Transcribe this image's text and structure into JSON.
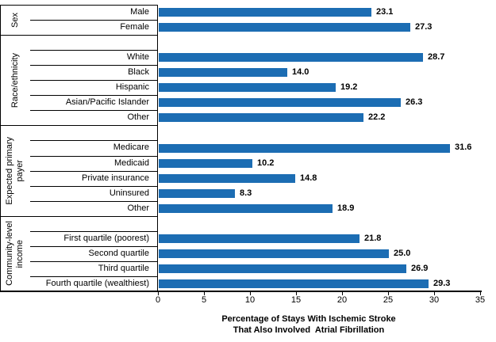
{
  "chart_data": {
    "type": "bar",
    "orientation": "horizontal",
    "title": "",
    "xlabel": "Percentage of Stays With Ischemic Stroke That Also Involved Atrial Fibrillation",
    "xlabel_lines": [
      "Percentage of Stays With Ischemic Stroke",
      "That Also Involved  Atrial Fibrillation"
    ],
    "xlim": [
      0,
      35
    ],
    "xticks": [
      0,
      5,
      10,
      15,
      20,
      25,
      30,
      35
    ],
    "grid": false,
    "legend": false,
    "bar_color": "#1C6DB3",
    "axis_color": "#000000",
    "value_label_decimals": 1,
    "groups": [
      {
        "label": "Sex",
        "label_lines": [
          "Sex"
        ],
        "items": [
          {
            "label": "Male",
            "value": 23.1
          },
          {
            "label": "Female",
            "value": 27.3
          }
        ]
      },
      {
        "label": "Race/ethnicity",
        "label_lines": [
          "Race/ethnicity"
        ],
        "items": [
          {
            "label": "White",
            "value": 28.7
          },
          {
            "label": "Black",
            "value": 14.0
          },
          {
            "label": "Hispanic",
            "value": 19.2
          },
          {
            "label": "Asian/Pacific Islander",
            "value": 26.3
          },
          {
            "label": "Other",
            "value": 22.2
          }
        ]
      },
      {
        "label": "Expected primary payer",
        "label_lines": [
          "Expected primary",
          "payer"
        ],
        "items": [
          {
            "label": "Medicare",
            "value": 31.6
          },
          {
            "label": "Medicaid",
            "value": 10.2
          },
          {
            "label": "Private insurance",
            "value": 14.8
          },
          {
            "label": "Uninsured",
            "value": 8.3
          },
          {
            "label": "Other",
            "value": 18.9
          }
        ]
      },
      {
        "label": "Community-level income",
        "label_lines": [
          "Community-level",
          "income"
        ],
        "items": [
          {
            "label": "First quartile (poorest)",
            "value": 21.8
          },
          {
            "label": "Second quartile",
            "value": 25.0
          },
          {
            "label": "Third quartile",
            "value": 26.9
          },
          {
            "label": "Fourth quartile (wealthiest)",
            "value": 29.3
          }
        ]
      }
    ]
  }
}
